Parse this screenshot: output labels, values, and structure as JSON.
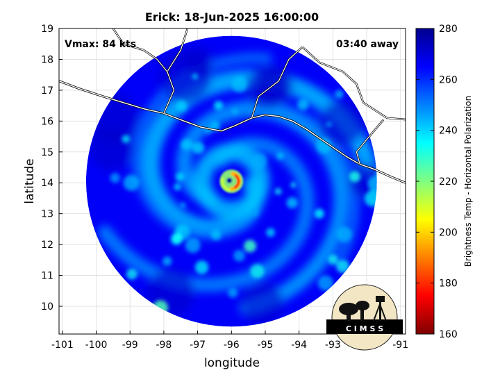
{
  "chart_data": {
    "type": "heatmap",
    "title": "Erick: 18-Jun-2025 16:00:00",
    "xlabel": "longitude",
    "ylabel": "latitude",
    "xlim": [
      -101.1,
      -90.85
    ],
    "ylim": [
      9.1,
      19.0
    ],
    "x_ticks": [
      -101,
      -100,
      -99,
      -98,
      -97,
      -96,
      -95,
      -94,
      -93,
      -92,
      -91
    ],
    "x_tick_labels": [
      "-101",
      "-100",
      "-99",
      "-98",
      "-97",
      "-96",
      "-95",
      "-94",
      "-93",
      "-92",
      "-91"
    ],
    "y_ticks": [
      10,
      11,
      12,
      13,
      14,
      15,
      16,
      17,
      18,
      19
    ],
    "y_tick_labels": [
      "10",
      "11",
      "12",
      "13",
      "14",
      "15",
      "16",
      "17",
      "18",
      "19"
    ],
    "grid": true,
    "annotations": {
      "vmax": "Vmax: 84 kts",
      "time_away": "03:40 away"
    },
    "storm_center": {
      "lon": -96.0,
      "lat": 14.05
    },
    "swath_radius_deg": 4.3,
    "colorbar": {
      "label": "Brightness Temp - Horizontal Polarization",
      "range": [
        160,
        280
      ],
      "ticks": [
        160,
        180,
        200,
        220,
        240,
        260,
        280
      ],
      "tick_labels": [
        "160",
        "180",
        "200",
        "220",
        "240",
        "260",
        "280"
      ],
      "colors": [
        "#7f0000",
        "#ff0000",
        "#ff8000",
        "#ffff00",
        "#80ff80",
        "#00ffff",
        "#0080ff",
        "#0000ff",
        "#00008f"
      ]
    },
    "coastline_points": [
      [
        -101.1,
        17.3
      ],
      [
        -100.5,
        17.05
      ],
      [
        -99.8,
        16.8
      ],
      [
        -99.2,
        16.6
      ],
      [
        -98.6,
        16.4
      ],
      [
        -98.0,
        16.25
      ],
      [
        -97.4,
        16.0
      ],
      [
        -96.9,
        15.8
      ],
      [
        -96.3,
        15.68
      ],
      [
        -95.9,
        15.85
      ],
      [
        -95.4,
        16.1
      ],
      [
        -95.0,
        16.2
      ],
      [
        -94.6,
        16.15
      ],
      [
        -94.2,
        16.0
      ],
      [
        -93.8,
        15.75
      ],
      [
        -93.4,
        15.45
      ],
      [
        -93.0,
        15.15
      ],
      [
        -92.6,
        14.85
      ],
      [
        -92.2,
        14.6
      ],
      [
        -91.8,
        14.45
      ],
      [
        -91.3,
        14.2
      ],
      [
        -90.85,
        14.0
      ]
    ],
    "logo_text": "C I M S S"
  }
}
